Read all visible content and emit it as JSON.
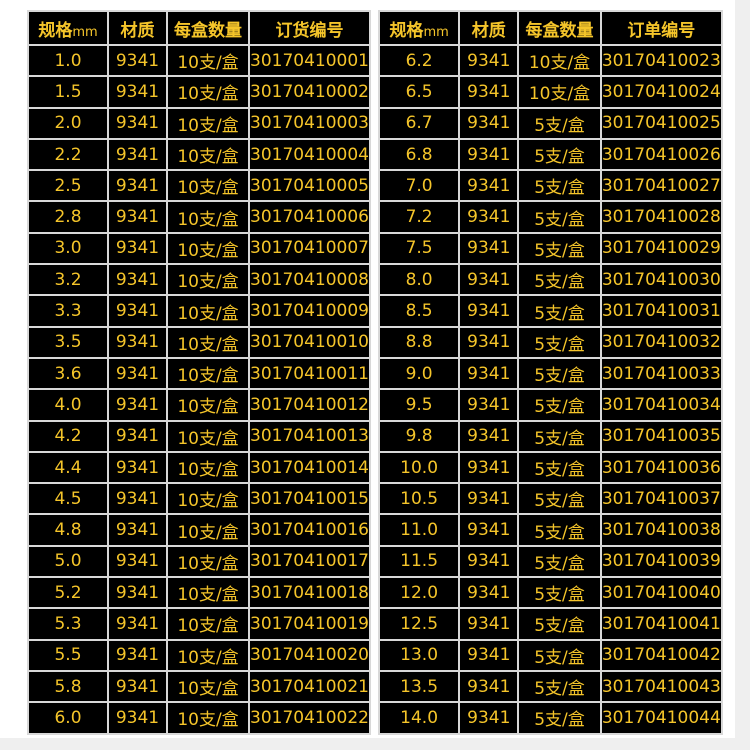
{
  "colors": {
    "text": "#f5c52a",
    "border": "#f2c230",
    "grid": "#d8d8d8",
    "background": "#000000"
  },
  "tables": [
    {
      "headers": [
        "规格",
        "mm",
        "材质",
        "每盒数量",
        "订货编号"
      ],
      "rows": [
        [
          "1.0",
          "9341",
          "10支/盒",
          "30170410001"
        ],
        [
          "1.5",
          "9341",
          "10支/盒",
          "30170410002"
        ],
        [
          "2.0",
          "9341",
          "10支/盒",
          "30170410003"
        ],
        [
          "2.2",
          "9341",
          "10支/盒",
          "30170410004"
        ],
        [
          "2.5",
          "9341",
          "10支/盒",
          "30170410005"
        ],
        [
          "2.8",
          "9341",
          "10支/盒",
          "30170410006"
        ],
        [
          "3.0",
          "9341",
          "10支/盒",
          "30170410007"
        ],
        [
          "3.2",
          "9341",
          "10支/盒",
          "30170410008"
        ],
        [
          "3.3",
          "9341",
          "10支/盒",
          "30170410009"
        ],
        [
          "3.5",
          "9341",
          "10支/盒",
          "30170410010"
        ],
        [
          "3.6",
          "9341",
          "10支/盒",
          "30170410011"
        ],
        [
          "4.0",
          "9341",
          "10支/盒",
          "30170410012"
        ],
        [
          "4.2",
          "9341",
          "10支/盒",
          "30170410013"
        ],
        [
          "4.4",
          "9341",
          "10支/盒",
          "30170410014"
        ],
        [
          "4.5",
          "9341",
          "10支/盒",
          "30170410015"
        ],
        [
          "4.8",
          "9341",
          "10支/盒",
          "30170410016"
        ],
        [
          "5.0",
          "9341",
          "10支/盒",
          "30170410017"
        ],
        [
          "5.2",
          "9341",
          "10支/盒",
          "30170410018"
        ],
        [
          "5.3",
          "9341",
          "10支/盒",
          "30170410019"
        ],
        [
          "5.5",
          "9341",
          "10支/盒",
          "30170410020"
        ],
        [
          "5.8",
          "9341",
          "10支/盒",
          "30170410021"
        ],
        [
          "6.0",
          "9341",
          "10支/盒",
          "30170410022"
        ]
      ]
    },
    {
      "headers": [
        "规格",
        "mm",
        "材质",
        "每盒数量",
        "订单编号"
      ],
      "rows": [
        [
          "6.2",
          "9341",
          "10支/盒",
          "30170410023"
        ],
        [
          "6.5",
          "9341",
          "10支/盒",
          "30170410024"
        ],
        [
          "6.7",
          "9341",
          "5支/盒",
          "30170410025"
        ],
        [
          "6.8",
          "9341",
          "5支/盒",
          "30170410026"
        ],
        [
          "7.0",
          "9341",
          "5支/盒",
          "30170410027"
        ],
        [
          "7.2",
          "9341",
          "5支/盒",
          "30170410028"
        ],
        [
          "7.5",
          "9341",
          "5支/盒",
          "30170410029"
        ],
        [
          "8.0",
          "9341",
          "5支/盒",
          "30170410030"
        ],
        [
          "8.5",
          "9341",
          "5支/盒",
          "30170410031"
        ],
        [
          "8.8",
          "9341",
          "5支/盒",
          "30170410032"
        ],
        [
          "9.0",
          "9341",
          "5支/盒",
          "30170410033"
        ],
        [
          "9.5",
          "9341",
          "5支/盒",
          "30170410034"
        ],
        [
          "9.8",
          "9341",
          "5支/盒",
          "30170410035"
        ],
        [
          "10.0",
          "9341",
          "5支/盒",
          "30170410036"
        ],
        [
          "10.5",
          "9341",
          "5支/盒",
          "30170410037"
        ],
        [
          "11.0",
          "9341",
          "5支/盒",
          "30170410038"
        ],
        [
          "11.5",
          "9341",
          "5支/盒",
          "30170410039"
        ],
        [
          "12.0",
          "9341",
          "5支/盒",
          "30170410040"
        ],
        [
          "12.5",
          "9341",
          "5支/盒",
          "30170410041"
        ],
        [
          "13.0",
          "9341",
          "5支/盒",
          "30170410042"
        ],
        [
          "13.5",
          "9341",
          "5支/盒",
          "30170410043"
        ],
        [
          "14.0",
          "9341",
          "5支/盒",
          "30170410044"
        ]
      ]
    }
  ]
}
